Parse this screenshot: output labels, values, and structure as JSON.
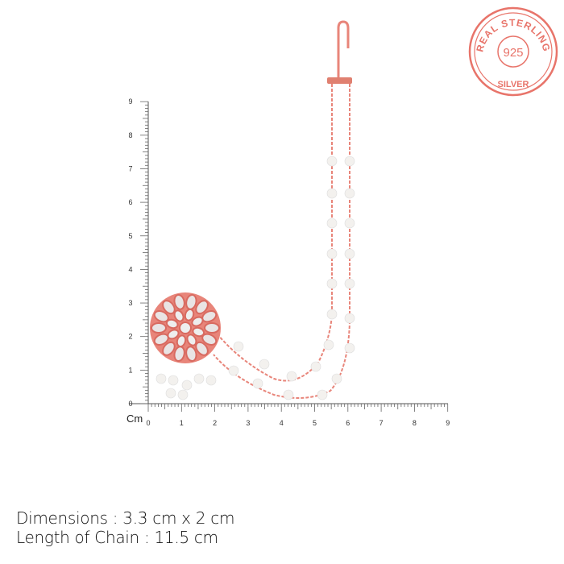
{
  "seal": {
    "text_top": "REAL STERLING",
    "text_center": "925",
    "text_bottom": "SILVER",
    "color": "#e8746a"
  },
  "ruler": {
    "unit": "Cm",
    "x_ticks": [
      "0",
      "1",
      "2",
      "3",
      "4",
      "5",
      "6",
      "7",
      "8",
      "9"
    ],
    "y_ticks": [
      "0",
      "1",
      "2",
      "3",
      "4",
      "5",
      "6",
      "7",
      "8",
      "9"
    ]
  },
  "product": {
    "metal_color": "#e8857a",
    "pearl_color": "#f3f1ee"
  },
  "captions": {
    "dimensions": "Dimensions : 3.3 cm x 2 cm",
    "chain_length": "Length of Chain : 11.5 cm"
  }
}
